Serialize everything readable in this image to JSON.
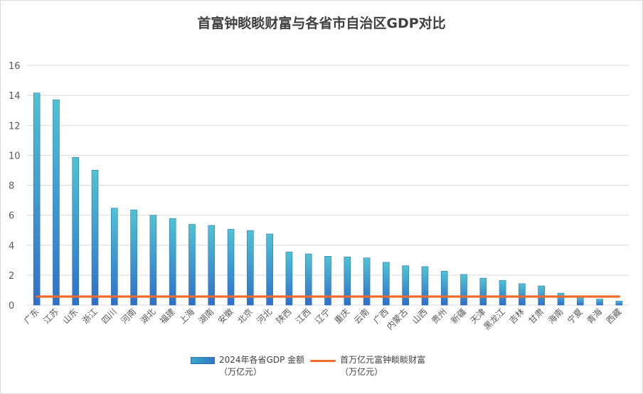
{
  "colors": {
    "bar_top": "#4fc3d3",
    "bar_bottom": "#2f6fc9",
    "line": "#ed6b2b",
    "grid": "#d9d9d9",
    "text": "#595959"
  },
  "chart_data": {
    "type": "bar",
    "title": "首富钟睒睒财富与各省市自治区GDP对比",
    "categories": [
      "广东",
      "江苏",
      "山东",
      "浙江",
      "四川",
      "河南",
      "湖北",
      "福建",
      "上海",
      "湖南",
      "安徽",
      "北京",
      "河北",
      "陕西",
      "江西",
      "辽宁",
      "重庆",
      "云南",
      "广西",
      "内蒙古",
      "山西",
      "贵州",
      "新疆",
      "天津",
      "黑龙江",
      "吉林",
      "甘肃",
      "海南",
      "宁夏",
      "青海",
      "西藏"
    ],
    "series": [
      {
        "name": "2024年各省GDP 金额（万亿元）",
        "legend_lines": [
          "2024年各省GDP 金额",
          "（万亿元）"
        ],
        "type": "bar",
        "values": [
          14.16,
          13.7,
          9.86,
          9.01,
          6.47,
          6.36,
          6.0,
          5.78,
          5.39,
          5.32,
          5.06,
          4.98,
          4.75,
          3.55,
          3.42,
          3.26,
          3.22,
          3.15,
          2.86,
          2.63,
          2.57,
          2.27,
          2.05,
          1.8,
          1.65,
          1.43,
          1.28,
          0.8,
          0.55,
          0.4,
          0.27
        ]
      },
      {
        "name": "首万亿元富钟睒睒财富（万亿元）",
        "legend_lines": [
          "首万亿元富钟睒睒财富",
          "（万亿元）"
        ],
        "type": "line",
        "value": 0.57
      }
    ],
    "ylim": [
      0,
      16
    ],
    "yticks": [
      "0",
      "2",
      "4",
      "6",
      "8",
      "10",
      "12",
      "14",
      "16"
    ],
    "grid": true,
    "legend_position": "bottom"
  }
}
